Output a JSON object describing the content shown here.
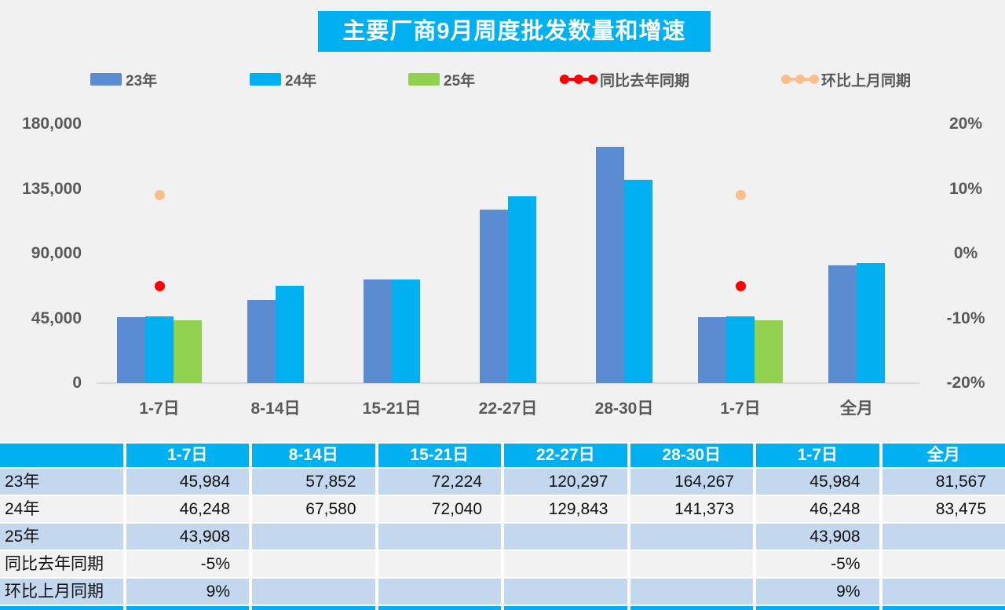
{
  "title": "主要厂商9月周度批发数量和增速",
  "colors": {
    "accent_cyan": "#00b0f0",
    "bar_23": "#5b8bd0",
    "bar_24": "#00b0f0",
    "bar_25": "#92d050",
    "yoy_red": "#ff0000",
    "mom_orange": "#f8be8c",
    "axis_text": "#595959",
    "axis_line": "#d9d9d9",
    "row_blue": "#c3d7ef",
    "row_gray": "#f2f2f2",
    "background": "#f1f1f1"
  },
  "legend": [
    {
      "label": "23年",
      "type": "bar",
      "color": "#5b8bd0"
    },
    {
      "label": "24年",
      "type": "bar",
      "color": "#00b0f0"
    },
    {
      "label": "25年",
      "type": "bar",
      "color": "#92d050"
    },
    {
      "label": "同比去年同期",
      "type": "line",
      "color": "#ff0000"
    },
    {
      "label": "环比上月同期",
      "type": "line",
      "color": "#f8be8c"
    }
  ],
  "chart_data": {
    "type": "bar",
    "title": "主要厂商9月周度批发数量和增速",
    "categories": [
      "1-7日",
      "8-14日",
      "15-21日",
      "22-27日",
      "28-30日",
      "1-7日",
      "全月"
    ],
    "series": [
      {
        "name": "23年",
        "color": "#5b8bd0",
        "values": [
          45984,
          57852,
          72224,
          120297,
          164267,
          45984,
          81567
        ]
      },
      {
        "name": "24年",
        "color": "#00b0f0",
        "values": [
          46248,
          67580,
          72040,
          129843,
          141373,
          46248,
          83475
        ]
      },
      {
        "name": "25年",
        "color": "#92d050",
        "values": [
          43908,
          null,
          null,
          null,
          null,
          43908,
          null
        ]
      }
    ],
    "point_series": [
      {
        "name": "同比去年同期",
        "color": "#ff0000",
        "values_pct": [
          -5,
          null,
          null,
          null,
          null,
          -5,
          null
        ]
      },
      {
        "name": "环比上月同期",
        "color": "#f8be8c",
        "values_pct": [
          9,
          null,
          null,
          null,
          null,
          9,
          null
        ]
      }
    ],
    "left_axis": {
      "ticks": [
        "180,000",
        "135,000",
        "90,000",
        "45,000",
        "0"
      ],
      "min": 0,
      "max": 180000
    },
    "right_axis": {
      "ticks": [
        "20%",
        "10%",
        "0%",
        "-10%",
        "-20%"
      ],
      "min": -20,
      "max": 20
    },
    "grid": false,
    "legend_position": "top"
  },
  "table": {
    "header": [
      "",
      "1-7日",
      "8-14日",
      "15-21日",
      "22-27日",
      "28-30日",
      "1-7日",
      "全月"
    ],
    "rows": [
      {
        "label": "23年",
        "cells": [
          "45,984",
          "57,852",
          "72,224",
          "120,297",
          "164,267",
          "45,984",
          "81,567"
        ]
      },
      {
        "label": "24年",
        "cells": [
          "46,248",
          "67,580",
          "72,040",
          "129,843",
          "141,373",
          "46,248",
          "83,475"
        ]
      },
      {
        "label": "25年",
        "cells": [
          "43,908",
          "",
          "",
          "",
          "",
          "43,908",
          ""
        ]
      },
      {
        "label": "同比去年同期",
        "cells": [
          "-5%",
          "",
          "",
          "",
          "",
          "-5%",
          ""
        ]
      },
      {
        "label": "环比上月同期",
        "cells": [
          "9%",
          "",
          "",
          "",
          "",
          "9%",
          ""
        ]
      }
    ]
  }
}
